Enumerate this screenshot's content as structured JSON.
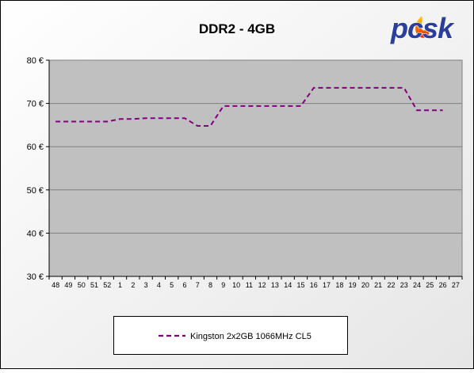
{
  "logo": {
    "text": "pcsk"
  },
  "chart_data": {
    "type": "line",
    "title": "DDR2 - 4GB",
    "xlabel": "",
    "ylabel": "",
    "categories": [
      "48",
      "49",
      "50",
      "51",
      "52",
      "1",
      "2",
      "3",
      "4",
      "5",
      "6",
      "7",
      "8",
      "9",
      "10",
      "11",
      "12",
      "13",
      "14",
      "15",
      "16",
      "17",
      "18",
      "19",
      "20",
      "21",
      "22",
      "23",
      "24",
      "25",
      "26",
      "27"
    ],
    "y_ticks": [
      "30 €",
      "40 €",
      "50 €",
      "60 €",
      "70 €",
      "80 €"
    ],
    "ylim": [
      30,
      80
    ],
    "grid": true,
    "legend_position": "bottom",
    "series": [
      {
        "name": "Kingston 2x2GB 1066MHz CL5",
        "color": "#800080",
        "style": "dashed",
        "values": [
          65.8,
          65.8,
          65.8,
          65.8,
          65.8,
          66.4,
          66.4,
          66.6,
          66.6,
          66.6,
          66.6,
          64.8,
          64.8,
          69.4,
          69.4,
          69.4,
          69.4,
          69.4,
          69.4,
          69.4,
          73.6,
          73.6,
          73.6,
          73.6,
          73.6,
          73.6,
          73.6,
          73.6,
          68.4,
          68.4,
          68.4,
          null
        ]
      }
    ],
    "colors": {
      "plot_bg": "#c0c0c0",
      "grid": "#808080",
      "frame_bg": "#ffffff"
    }
  }
}
